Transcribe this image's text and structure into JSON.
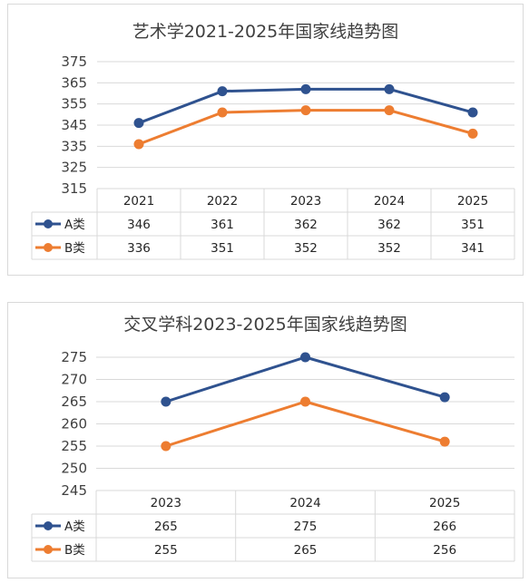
{
  "colors": {
    "A": "#2f528f",
    "B": "#ed7d31",
    "grid": "#d9d9d9",
    "text": "#404040"
  },
  "chart_data": [
    {
      "type": "line",
      "title": "艺术学2021-2025年国家线趋势图",
      "categories": [
        "2021",
        "2022",
        "2023",
        "2024",
        "2025"
      ],
      "series": [
        {
          "name": "A类",
          "values": [
            346,
            361,
            362,
            362,
            351
          ]
        },
        {
          "name": "B类",
          "values": [
            336,
            351,
            352,
            352,
            341
          ]
        }
      ],
      "ylim": [
        315,
        375
      ],
      "yticks": [
        "375",
        "365",
        "355",
        "345",
        "335",
        "325",
        "315"
      ],
      "grid": true,
      "legend": "data-table"
    },
    {
      "type": "line",
      "title": "交叉学科2023-2025年国家线趋势图",
      "categories": [
        "2023",
        "2024",
        "2025"
      ],
      "series": [
        {
          "name": "A类",
          "values": [
            265,
            275,
            266
          ]
        },
        {
          "name": "B类",
          "values": [
            255,
            265,
            256
          ]
        }
      ],
      "ylim": [
        245,
        275
      ],
      "yticks": [
        "275",
        "270",
        "265",
        "260",
        "255",
        "250",
        "245"
      ],
      "grid": true,
      "legend": "data-table"
    }
  ]
}
